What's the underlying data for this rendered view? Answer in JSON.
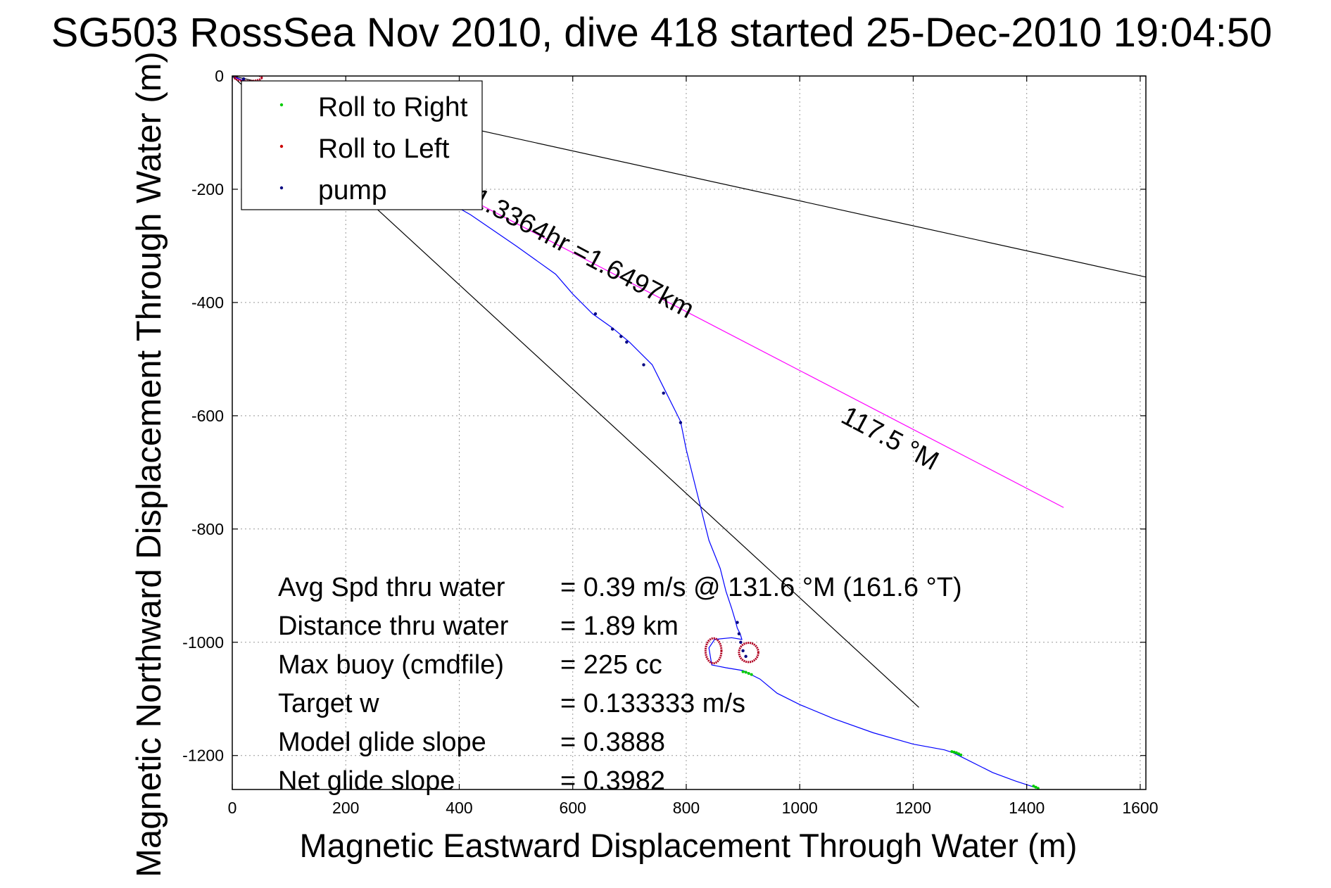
{
  "chart_data": {
    "type": "scatter",
    "title": "SG503 RossSea Nov 2010, dive 418 started 25-Dec-2010 19:04:50",
    "xlabel": "Magnetic Eastward Displacement Through Water (m)",
    "ylabel": "Magnetic Northward Displacement Through Water (m)",
    "xlim": [
      0,
      1610
    ],
    "ylim": [
      -1260,
      0
    ],
    "xticks": [
      0,
      200,
      400,
      600,
      800,
      1000,
      1200,
      1400,
      1600
    ],
    "xtick_labels": [
      "0",
      "200",
      "400",
      "600",
      "800",
      "1000",
      "1200",
      "1400",
      "1600"
    ],
    "yticks": [
      0,
      -200,
      -400,
      -600,
      -800,
      -1000,
      -1200
    ],
    "ytick_labels": [
      "0",
      "-200",
      "-400",
      "-600",
      "-800",
      "-1000",
      "-1200"
    ],
    "grid": true,
    "legend": {
      "position": "top-left",
      "entries": [
        {
          "label": "Roll to Right",
          "color": "#00cc00"
        },
        {
          "label": "Roll to Left",
          "color": "#cc0000"
        },
        {
          "label": "pump",
          "color": "#000080"
        }
      ]
    },
    "track": {
      "name": "glider track",
      "color": "#0000ff",
      "x": [
        0,
        60,
        120,
        200,
        280,
        350,
        420,
        500,
        570,
        600,
        635,
        670,
        700,
        740,
        765,
        790,
        800,
        820,
        840,
        860,
        870,
        880,
        886,
        890,
        895,
        898,
        880,
        850,
        840,
        845,
        870,
        900,
        930,
        960,
        1000,
        1060,
        1130,
        1200,
        1255,
        1270,
        1290,
        1340,
        1380,
        1420
      ],
      "y": [
        0,
        -25,
        -60,
        -110,
        -160,
        -205,
        -245,
        -300,
        -350,
        -385,
        -420,
        -445,
        -470,
        -510,
        -560,
        -610,
        -660,
        -740,
        -820,
        -870,
        -910,
        -940,
        -960,
        -975,
        -985,
        -995,
        -992,
        -995,
        -1010,
        -1040,
        -1045,
        -1050,
        -1065,
        -1090,
        -1110,
        -1135,
        -1160,
        -1180,
        -1190,
        -1195,
        -1205,
        -1230,
        -1245,
        -1258
      ]
    },
    "roll_right": {
      "color": "#00cc00",
      "x": [
        1268,
        1272,
        1276,
        1280,
        1284,
        900,
        905,
        910,
        915,
        1412,
        1416,
        1420
      ],
      "y": [
        -1193,
        -1194,
        -1195,
        -1197,
        -1199,
        -1052,
        -1053,
        -1055,
        -1057,
        -1254,
        -1256,
        -1258
      ]
    },
    "roll_left_loops": [
      {
        "cx": 848,
        "cy": -1015,
        "rx": 14,
        "ry": 22
      },
      {
        "cx": 910,
        "cy": -1018,
        "rx": 17,
        "ry": 17
      },
      {
        "cx": 28,
        "cy": -3,
        "rx": 24,
        "ry": 6
      }
    ],
    "pump": {
      "color": "#000080",
      "x": [
        640,
        670,
        685,
        695,
        725,
        760,
        790,
        890,
        893,
        896,
        900,
        905,
        0,
        20
      ],
      "y": [
        -420,
        -447,
        -460,
        -470,
        -510,
        -560,
        -612,
        -965,
        -985,
        -1000,
        -1015,
        -1025,
        0,
        -5
      ]
    },
    "lines": [
      {
        "name": "bearing line",
        "color": "#ff00ff",
        "x": [
          0,
          1465
        ],
        "y": [
          0,
          -762
        ]
      },
      {
        "name": "bounding line 1",
        "color": "#000000",
        "x": [
          0,
          1610
        ],
        "y": [
          0,
          -355
        ]
      },
      {
        "name": "bounding line 2",
        "color": "#000000",
        "x": [
          0,
          1210
        ],
        "y": [
          0,
          -1115
        ]
      }
    ],
    "annotations": [
      {
        "text": "1.3364hr =1.6497km",
        "x": 420,
        "y": -225,
        "angle": 28
      },
      {
        "text": "117.5 °M",
        "x": 1070,
        "y": -610,
        "angle": 28
      }
    ],
    "stats": [
      {
        "label": "Avg Spd thru water",
        "value": "=  0.39 m/s @ 131.6 °M (161.6 °T)"
      },
      {
        "label": "Distance thru water",
        "value": "=  1.89 km"
      },
      {
        "label": "Max buoy (cmdfile)",
        "value": "= 225 cc"
      },
      {
        "label": "Target w",
        "value": "= 0.133333 m/s"
      },
      {
        "label": "Model glide slope",
        "value": "= 0.3888"
      },
      {
        "label": "Net glide slope",
        "value": "= 0.3982"
      }
    ]
  }
}
